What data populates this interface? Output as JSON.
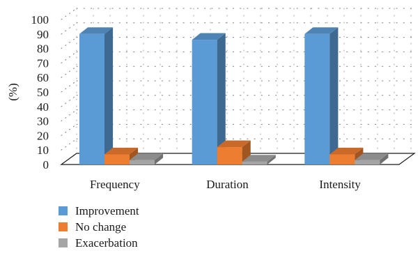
{
  "chart_data": {
    "type": "bar",
    "style": "3d-clustered-column",
    "categories": [
      "Frequency",
      "Duration",
      "Intensity"
    ],
    "series": [
      {
        "name": "Improvement",
        "values": [
          90,
          86,
          90
        ],
        "color": "#5b9bd5"
      },
      {
        "name": "No change",
        "values": [
          7,
          12,
          7
        ],
        "color": "#ed7d31"
      },
      {
        "name": "Exacerbation",
        "values": [
          3,
          2,
          3
        ],
        "color": "#a5a5a5"
      }
    ],
    "ylabel": "(%)",
    "xlabel": "",
    "ylim": [
      0,
      100
    ],
    "yticks": [
      0,
      10,
      20,
      30,
      40,
      50,
      60,
      70,
      80,
      90,
      100
    ],
    "grid": "dotted",
    "legend_position": "bottom-left"
  }
}
